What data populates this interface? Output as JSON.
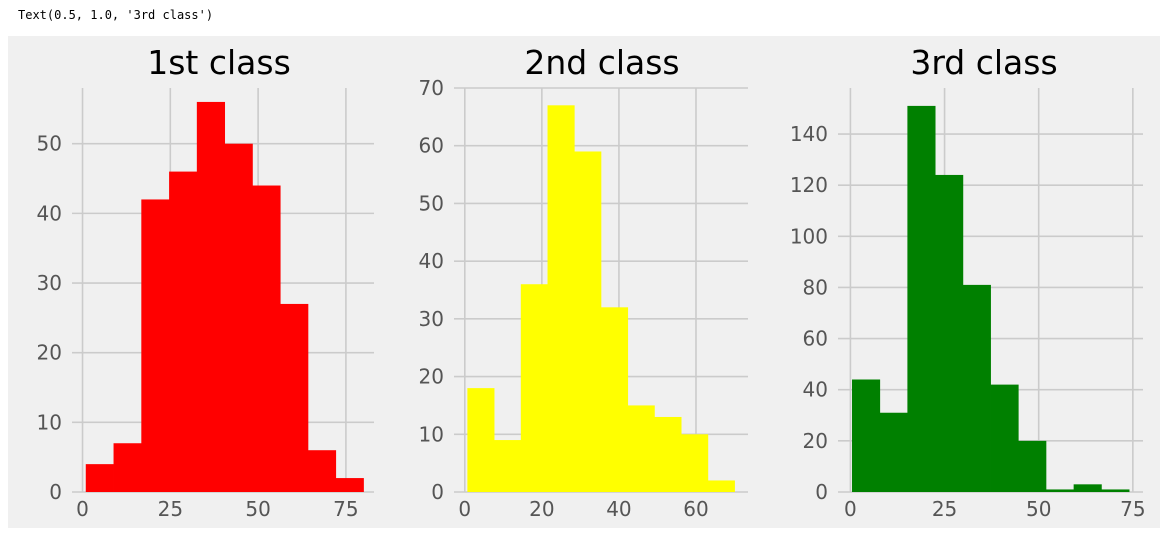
{
  "output_text": "Text(0.5, 1.0, '3rd class')",
  "style": {
    "figure_bg": "#f0f0f0",
    "grid": "#cbcbcb",
    "tick_color": "#555555"
  },
  "chart_data": [
    {
      "type": "bar",
      "subtype": "histogram",
      "title": "1st class",
      "color": "#ff0000",
      "bin_edges": [
        0.92,
        8.83,
        16.74,
        24.65,
        32.55,
        40.46,
        48.37,
        56.28,
        64.18,
        72.09,
        80.0
      ],
      "values": [
        4,
        7,
        42,
        46,
        56,
        50,
        44,
        27,
        6,
        2
      ],
      "xlim": [
        -3,
        83
      ],
      "ylim": [
        0,
        58
      ],
      "xticks": [
        0,
        25,
        50,
        75
      ],
      "yticks": [
        0,
        10,
        20,
        30,
        40,
        50
      ],
      "grid": true
    },
    {
      "type": "bar",
      "subtype": "histogram",
      "title": "2nd class",
      "color": "#ffff00",
      "bin_edges": [
        0.67,
        7.6,
        14.54,
        21.47,
        28.4,
        35.33,
        42.27,
        49.2,
        56.14,
        63.07,
        70.0
      ],
      "values": [
        18,
        9,
        36,
        67,
        59,
        32,
        15,
        13,
        10,
        2
      ],
      "xlim": [
        -2.8,
        73.5
      ],
      "ylim": [
        0,
        70
      ],
      "xticks": [
        0,
        20,
        40,
        60
      ],
      "yticks": [
        0,
        10,
        20,
        30,
        40,
        50,
        60,
        70
      ],
      "grid": true
    },
    {
      "type": "bar",
      "subtype": "histogram",
      "title": "3rd class",
      "color": "#008000",
      "bin_edges": [
        0.42,
        7.78,
        15.13,
        22.49,
        29.85,
        37.21,
        44.56,
        51.92,
        59.28,
        66.64,
        74.0
      ],
      "values": [
        44,
        31,
        151,
        124,
        81,
        42,
        20,
        1,
        3,
        1
      ],
      "xlim": [
        -3.3,
        77.7
      ],
      "ylim": [
        0,
        158
      ],
      "xticks": [
        0,
        25,
        50,
        75
      ],
      "yticks": [
        0,
        20,
        40,
        60,
        80,
        100,
        120,
        140
      ],
      "grid": true
    }
  ]
}
